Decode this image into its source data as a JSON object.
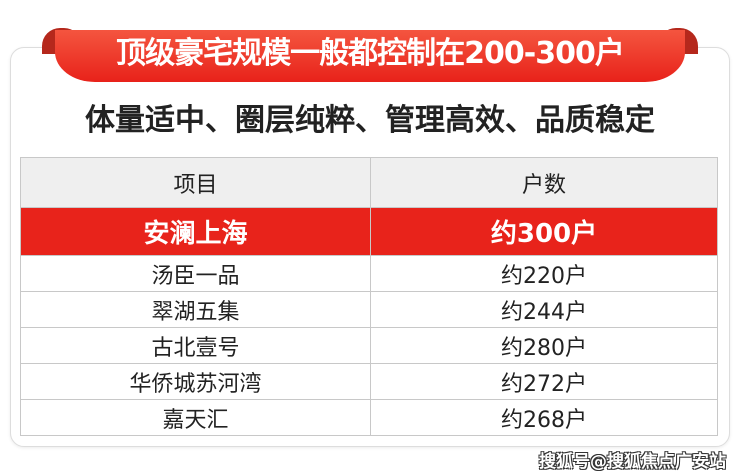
{
  "banner": {
    "title": "顶级豪宅规模一般都控制在200-300户"
  },
  "subtitle": "体量适中、圈层纯粹、管理高效、品质稳定",
  "table": {
    "headers": [
      "项目",
      "户数"
    ],
    "highlight": {
      "name": "安澜上海",
      "units": "约300户"
    },
    "rows": [
      {
        "name": "汤臣一品",
        "units": "约220户"
      },
      {
        "name": "翠湖五集",
        "units": "约244户"
      },
      {
        "name": "古北壹号",
        "units": "约280户"
      },
      {
        "name": "华侨城苏河湾",
        "units": "约272户"
      },
      {
        "name": "嘉天汇",
        "units": "约268户"
      }
    ]
  },
  "watermark": "搜狐号@搜狐焦点广安站",
  "colors": {
    "accent": "#e8231b",
    "header_bg": "#efefef"
  }
}
